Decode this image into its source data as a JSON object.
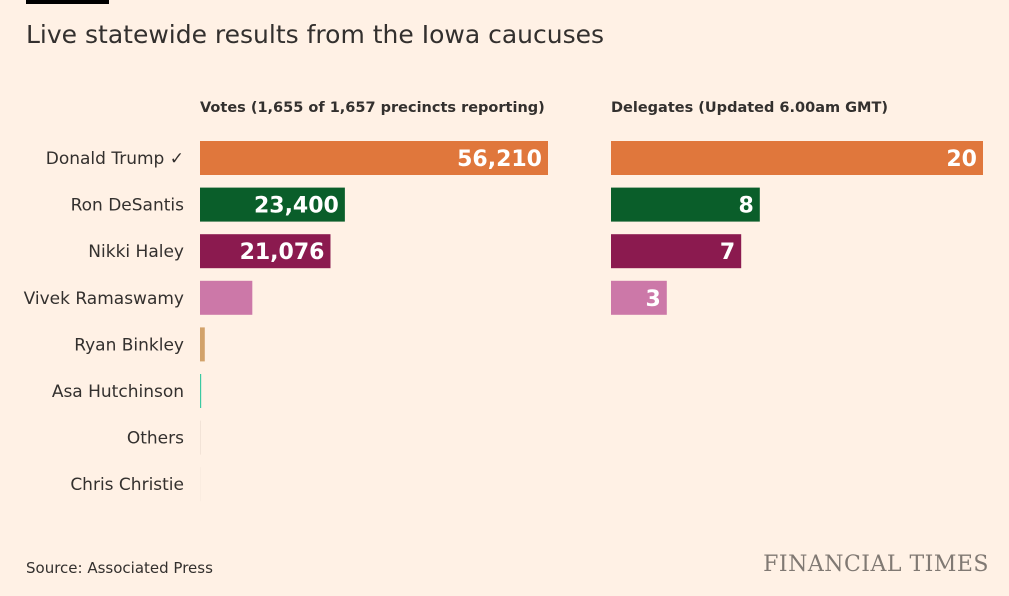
{
  "title": "Live statewide results from the Iowa caucuses",
  "source": "Source: Associated Press",
  "logo": "FINANCIAL TIMES",
  "chart_data": [
    {
      "type": "bar",
      "orientation": "horizontal",
      "title": "Votes (1,655 of 1,657 precincts reporting)",
      "categories": [
        "Donald Trump ✓",
        "Ron DeSantis",
        "Nikki Haley",
        "Vivek Ramaswamy",
        "Ryan Binkley",
        "Asa Hutchinson",
        "Others",
        "Chris Christie"
      ],
      "values": [
        56210,
        23400,
        21076,
        8450,
        774,
        191,
        90,
        35
      ],
      "labels": [
        "56,210",
        "23,400",
        "21,076",
        "",
        "",
        "",
        "",
        ""
      ],
      "colors": [
        "#e0773c",
        "#0a5e2a",
        "#8b1a4f",
        "#cc78a8",
        "#d2a26a",
        "#3bc9a2",
        "#e8d8cc",
        "#f2e4d8"
      ],
      "xlim": [
        0,
        56210
      ],
      "grid": false
    },
    {
      "type": "bar",
      "orientation": "horizontal",
      "title": "Delegates (Updated 6.00am GMT)",
      "categories": [
        "Donald Trump ✓",
        "Ron DeSantis",
        "Nikki Haley",
        "Vivek Ramaswamy"
      ],
      "values": [
        20,
        8,
        7,
        3
      ],
      "labels": [
        "20",
        "8",
        "7",
        "3"
      ],
      "colors": [
        "#e0773c",
        "#0a5e2a",
        "#8b1a4f",
        "#cc78a8"
      ],
      "xlim": [
        0,
        20
      ],
      "grid": false
    }
  ]
}
